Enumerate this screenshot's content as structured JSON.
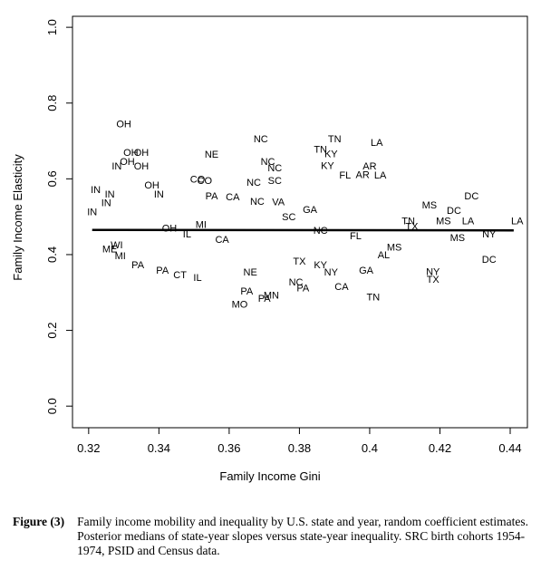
{
  "chart_data": {
    "type": "scatter",
    "x_label": "Family Income Gini",
    "y_label": "Family Income Elasticity",
    "xlim": [
      0.3154,
      0.4449
    ],
    "ylim": [
      -0.057,
      1.029
    ],
    "xticks": [
      0.32,
      0.34,
      0.36,
      0.38,
      0.4,
      0.42,
      0.44
    ],
    "yticks": [
      {
        "value": 0,
        "label": "0.0"
      },
      0.2,
      0.4,
      0.6,
      0.8,
      {
        "value": 1,
        "label": "1.0"
      }
    ],
    "series": [
      {
        "color": "#000",
        "labels": [
          "OH",
          "OH",
          "OH",
          "OH",
          "IN",
          "OH",
          "NE",
          "NC",
          "TN",
          "TN",
          "KY",
          "LA",
          "NC",
          "NC",
          "KY",
          "AR",
          "FL",
          "AR",
          "LA",
          "CO",
          "CO",
          "NC",
          "SC",
          "IN",
          "IN",
          "OH",
          "IN",
          "PA",
          "CA",
          "NC",
          "IN",
          "IN",
          "MS",
          "DC",
          "DC",
          "MS",
          "LA",
          "LA",
          "TN",
          "NY",
          "MS",
          "DC",
          "NY",
          "TX",
          "MI",
          "PA",
          "PA",
          "CT",
          "IL",
          "PA",
          "MN",
          "PA",
          "MO",
          "NE",
          "NC",
          "PA",
          "CA",
          "TN",
          "NY",
          "GA",
          "TX",
          "KY",
          "WI",
          "ME",
          "VA",
          "GA",
          "OH",
          "IL",
          "MI",
          "CA",
          "SC",
          "NC",
          "FL",
          "MS",
          "TX",
          "AL"
        ],
        "x": [
          0.33,
          0.332,
          0.335,
          0.331,
          0.328,
          0.335,
          0.355,
          0.369,
          0.39,
          0.386,
          0.389,
          0.402,
          0.371,
          0.373,
          0.388,
          0.4,
          0.393,
          0.398,
          0.403,
          0.351,
          0.353,
          0.367,
          0.373,
          0.322,
          0.326,
          0.338,
          0.34,
          0.355,
          0.361,
          0.368,
          0.321,
          0.325,
          0.417,
          0.429,
          0.424,
          0.421,
          0.428,
          0.442,
          0.411,
          0.434,
          0.425,
          0.434,
          0.418,
          0.418,
          0.329,
          0.334,
          0.341,
          0.346,
          0.351,
          0.365,
          0.372,
          0.37,
          0.363,
          0.366,
          0.379,
          0.381,
          0.392,
          0.401,
          0.389,
          0.399,
          0.38,
          0.386,
          0.328,
          0.326,
          0.374,
          0.383,
          0.343,
          0.348,
          0.352,
          0.358,
          0.377,
          0.386,
          0.396,
          0.407,
          0.412,
          0.404
        ],
        "y": [
          0.746,
          0.67,
          0.67,
          0.646,
          0.634,
          0.634,
          0.665,
          0.706,
          0.706,
          0.679,
          0.667,
          0.696,
          0.646,
          0.629,
          0.636,
          0.634,
          0.61,
          0.612,
          0.61,
          0.6,
          0.596,
          0.591,
          0.596,
          0.572,
          0.56,
          0.584,
          0.56,
          0.555,
          0.553,
          0.541,
          0.514,
          0.538,
          0.531,
          0.555,
          0.517,
          0.49,
          0.49,
          0.49,
          0.49,
          0.455,
          0.445,
          0.388,
          0.356,
          0.335,
          0.397,
          0.373,
          0.359,
          0.347,
          0.34,
          0.304,
          0.294,
          0.285,
          0.27,
          0.354,
          0.328,
          0.313,
          0.316,
          0.289,
          0.354,
          0.359,
          0.383,
          0.373,
          0.426,
          0.415,
          0.54,
          0.52,
          0.47,
          0.455,
          0.48,
          0.44,
          0.5,
          0.465,
          0.45,
          0.42,
          0.475,
          0.4
        ]
      }
    ],
    "fit_line": {
      "x": [
        0.321,
        0.441
      ],
      "y": [
        0.465,
        0.464
      ]
    }
  },
  "caption": {
    "label": "Figure (3)",
    "text": "Family income mobility and inequality by U.S. state and year, random coefficient estimates. Posterior medians of state-year slopes versus state-year inequality. SRC birth cohorts 1954-1974, PSID and Census data."
  }
}
